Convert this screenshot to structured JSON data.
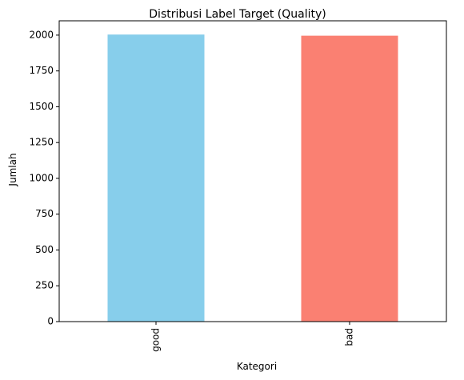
{
  "chart_data": {
    "type": "bar",
    "title": "Distribusi Label Target (Quality)",
    "xlabel": "Kategori",
    "ylabel": "Jumlah",
    "categories": [
      "good",
      "bad"
    ],
    "values": [
      2004,
      1996
    ],
    "colors": [
      "#87ceeb",
      "#fa8072"
    ],
    "ylim": [
      0,
      2100
    ],
    "yticks": [
      0,
      250,
      500,
      750,
      1000,
      1250,
      1500,
      1750,
      2000
    ],
    "x_tick_rotation": "vertical",
    "grid": false,
    "legend": "none"
  }
}
